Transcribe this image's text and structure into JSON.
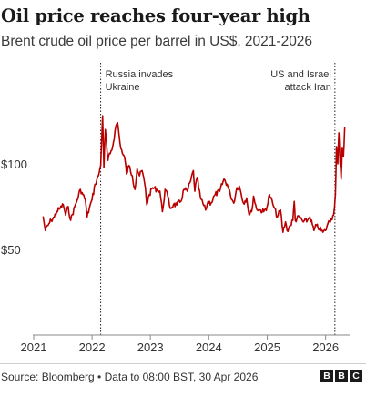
{
  "title": "Oil price reaches four-year high",
  "subtitle": "Brent crude oil price per barrel in US$, 2021-2026",
  "source": "Source: Bloomberg • Data to 08:00 BST, 30 Apr 2026",
  "logo": [
    "B",
    "B",
    "C"
  ],
  "colors": {
    "line": "#b80000",
    "text": "#222222",
    "axis": "#999999"
  },
  "chart_data": {
    "type": "line",
    "title": "Oil price reaches four-year high",
    "subtitle": "Brent crude oil price per barrel in US$, 2021-2026",
    "xlabel": "",
    "ylabel": "",
    "xlim": [
      "2021-01-01",
      "2026-05-31"
    ],
    "ylim": [
      0,
      160
    ],
    "grid": false,
    "x_ticks": [
      "2021",
      "2022",
      "2023",
      "2024",
      "2025",
      "2026"
    ],
    "y_ticks": [
      {
        "value": 100,
        "label": "$100"
      },
      {
        "value": 50,
        "label": "$50"
      }
    ],
    "annotations": [
      {
        "date": "2022-02-24",
        "lines": [
          "Russia invades",
          "Ukraine"
        ],
        "align": "left"
      },
      {
        "date": "2026-02-28",
        "lines": [
          "US and Israel",
          "attack Iran"
        ],
        "align": "right"
      }
    ],
    "series": [
      {
        "color": "#b80000",
        "points": [
          [
            "2021-03-01",
            69
          ],
          [
            "2021-03-15",
            61
          ],
          [
            "2021-04-01",
            64
          ],
          [
            "2021-04-20",
            67
          ],
          [
            "2021-05-10",
            69
          ],
          [
            "2021-05-25",
            72
          ],
          [
            "2021-06-15",
            74
          ],
          [
            "2021-07-05",
            76
          ],
          [
            "2021-07-20",
            70
          ],
          [
            "2021-08-05",
            75
          ],
          [
            "2021-08-20",
            67
          ],
          [
            "2021-09-15",
            75
          ],
          [
            "2021-10-01",
            79
          ],
          [
            "2021-10-20",
            85
          ],
          [
            "2021-11-05",
            82
          ],
          [
            "2021-11-20",
            79
          ],
          [
            "2021-12-01",
            69
          ],
          [
            "2021-12-15",
            74
          ],
          [
            "2022-01-01",
            79
          ],
          [
            "2022-01-20",
            88
          ],
          [
            "2022-02-10",
            93
          ],
          [
            "2022-02-24",
            99
          ],
          [
            "2022-03-08",
            128
          ],
          [
            "2022-03-16",
            98
          ],
          [
            "2022-03-25",
            120
          ],
          [
            "2022-04-10",
            102
          ],
          [
            "2022-04-25",
            106
          ],
          [
            "2022-05-10",
            110
          ],
          [
            "2022-05-30",
            122
          ],
          [
            "2022-06-10",
            124
          ],
          [
            "2022-06-25",
            112
          ],
          [
            "2022-07-10",
            106
          ],
          [
            "2022-07-25",
            103
          ],
          [
            "2022-08-05",
            94
          ],
          [
            "2022-08-20",
            99
          ],
          [
            "2022-09-10",
            93
          ],
          [
            "2022-09-26",
            85
          ],
          [
            "2022-10-10",
            97
          ],
          [
            "2022-10-25",
            93
          ],
          [
            "2022-11-10",
            96
          ],
          [
            "2022-12-01",
            86
          ],
          [
            "2022-12-09",
            76
          ],
          [
            "2022-12-25",
            82
          ],
          [
            "2023-01-15",
            86
          ],
          [
            "2023-02-10",
            85
          ],
          [
            "2023-03-01",
            84
          ],
          [
            "2023-03-17",
            72
          ],
          [
            "2023-04-03",
            85
          ],
          [
            "2023-04-20",
            81
          ],
          [
            "2023-05-05",
            74
          ],
          [
            "2023-05-25",
            76
          ],
          [
            "2023-06-15",
            76
          ],
          [
            "2023-07-10",
            78
          ],
          [
            "2023-07-30",
            85
          ],
          [
            "2023-08-20",
            84
          ],
          [
            "2023-09-10",
            90
          ],
          [
            "2023-09-27",
            96
          ],
          [
            "2023-10-06",
            84
          ],
          [
            "2023-10-20",
            92
          ],
          [
            "2023-11-10",
            80
          ],
          [
            "2023-12-12",
            73
          ],
          [
            "2023-12-28",
            78
          ],
          [
            "2024-01-15",
            77
          ],
          [
            "2024-02-10",
            82
          ],
          [
            "2024-03-10",
            84
          ],
          [
            "2024-04-05",
            91
          ],
          [
            "2024-04-25",
            88
          ],
          [
            "2024-05-15",
            82
          ],
          [
            "2024-06-05",
            77
          ],
          [
            "2024-06-25",
            86
          ],
          [
            "2024-07-10",
            87
          ],
          [
            "2024-08-05",
            77
          ],
          [
            "2024-08-25",
            80
          ],
          [
            "2024-09-10",
            70
          ],
          [
            "2024-09-25",
            72
          ],
          [
            "2024-10-07",
            81
          ],
          [
            "2024-10-25",
            74
          ],
          [
            "2024-11-15",
            73
          ],
          [
            "2024-12-10",
            72
          ],
          [
            "2024-12-31",
            75
          ],
          [
            "2025-01-15",
            82
          ],
          [
            "2025-02-10",
            75
          ],
          [
            "2025-03-05",
            69
          ],
          [
            "2025-03-25",
            73
          ],
          [
            "2025-04-09",
            60
          ],
          [
            "2025-04-25",
            66
          ],
          [
            "2025-05-05",
            61
          ],
          [
            "2025-05-25",
            64
          ],
          [
            "2025-06-10",
            67
          ],
          [
            "2025-06-19",
            78
          ],
          [
            "2025-06-25",
            67
          ],
          [
            "2025-07-20",
            69
          ],
          [
            "2025-08-15",
            66
          ],
          [
            "2025-09-10",
            67
          ],
          [
            "2025-09-25",
            69
          ],
          [
            "2025-10-20",
            61
          ],
          [
            "2025-11-05",
            64
          ],
          [
            "2025-11-25",
            62
          ],
          [
            "2025-12-15",
            60
          ],
          [
            "2025-12-31",
            61
          ],
          [
            "2026-01-15",
            65
          ],
          [
            "2026-02-05",
            68
          ],
          [
            "2026-02-20",
            70
          ],
          [
            "2026-03-03",
            82
          ],
          [
            "2026-03-10",
            110
          ],
          [
            "2026-03-18",
            100
          ],
          [
            "2026-03-25",
            118
          ],
          [
            "2026-04-01",
            101
          ],
          [
            "2026-04-08",
            91
          ],
          [
            "2026-04-15",
            109
          ],
          [
            "2026-04-22",
            104
          ],
          [
            "2026-04-30",
            121
          ]
        ]
      }
    ]
  }
}
